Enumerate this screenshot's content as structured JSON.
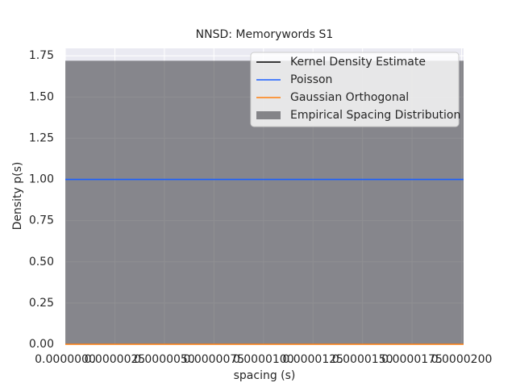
{
  "chart_data": {
    "type": "histogram",
    "title": "NNSD: Memorywords S1",
    "xlabel": "spacing (s)",
    "ylabel": "Density p(s)",
    "bins": [
      0,
      2.01e-05
    ],
    "counts": [
      1.72
    ],
    "hist_name": "Empirical Spacing Distribution",
    "hist_color": "#333338",
    "x": [
      0,
      2.01e-05
    ],
    "series": [
      {
        "name": "Kernel Density Estimate",
        "color": "#000000",
        "values": [
          null,
          null
        ]
      },
      {
        "name": "Poisson",
        "color": "#1a5fff",
        "values": [
          1,
          1
        ]
      },
      {
        "name": "Gaussian Orthogonal",
        "color": "#ff7f0e",
        "values": [
          0,
          0
        ]
      }
    ],
    "xlim": [
      0,
      2.01e-05
    ],
    "ylim": [
      0,
      1.795
    ],
    "xticks": [
      {
        "value": 0,
        "label": "0.0000000"
      },
      {
        "value": 2.5e-06,
        "label": "0.0000025"
      },
      {
        "value": 5e-06,
        "label": "0.0000050"
      },
      {
        "value": 7.5e-06,
        "label": "0.0000075"
      },
      {
        "value": 1e-05,
        "label": "0.0000100"
      },
      {
        "value": 1.25e-05,
        "label": "0.0000125"
      },
      {
        "value": 1.5e-05,
        "label": "0.0000150"
      },
      {
        "value": 1.75e-05,
        "label": "0.0000175"
      },
      {
        "value": 2e-05,
        "label": "0.0000200"
      }
    ],
    "yticks": [
      {
        "value": 0,
        "label": "0.00"
      },
      {
        "value": 0.25,
        "label": "0.25"
      },
      {
        "value": 0.5,
        "label": "0.50"
      },
      {
        "value": 0.75,
        "label": "0.75"
      },
      {
        "value": 1,
        "label": "1.00"
      },
      {
        "value": 1.25,
        "label": "1.25"
      },
      {
        "value": 1.5,
        "label": "1.50"
      },
      {
        "value": 1.75,
        "label": "1.75"
      }
    ],
    "grid": true,
    "legend": "upper right"
  }
}
